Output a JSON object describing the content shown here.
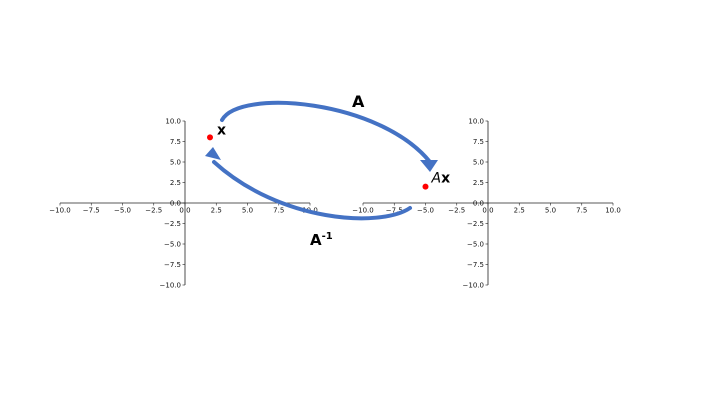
{
  "colors": {
    "point": "#ff0000",
    "arrow": "#4472c4",
    "axis": "#222222"
  },
  "x_ticks": [
    "−10.0",
    "−7.5",
    "−5.0",
    "−2.5",
    "0.0",
    "2.5",
    "5.0",
    "7.5",
    "10.0"
  ],
  "y_ticks": [
    "10.0",
    "7.5",
    "5.0",
    "2.5",
    "0.0",
    "−2.5",
    "−5.0",
    "−7.5",
    "−10.0"
  ],
  "left_plot": {
    "point": {
      "x": 2,
      "y": 8
    },
    "point_label": "x"
  },
  "right_plot": {
    "point": {
      "x": -5,
      "y": 2
    },
    "point_label_italic": "A",
    "point_label_bold": "x"
  },
  "forward_label": "A",
  "inverse_label_base": "A",
  "inverse_label_sup": "-1"
}
